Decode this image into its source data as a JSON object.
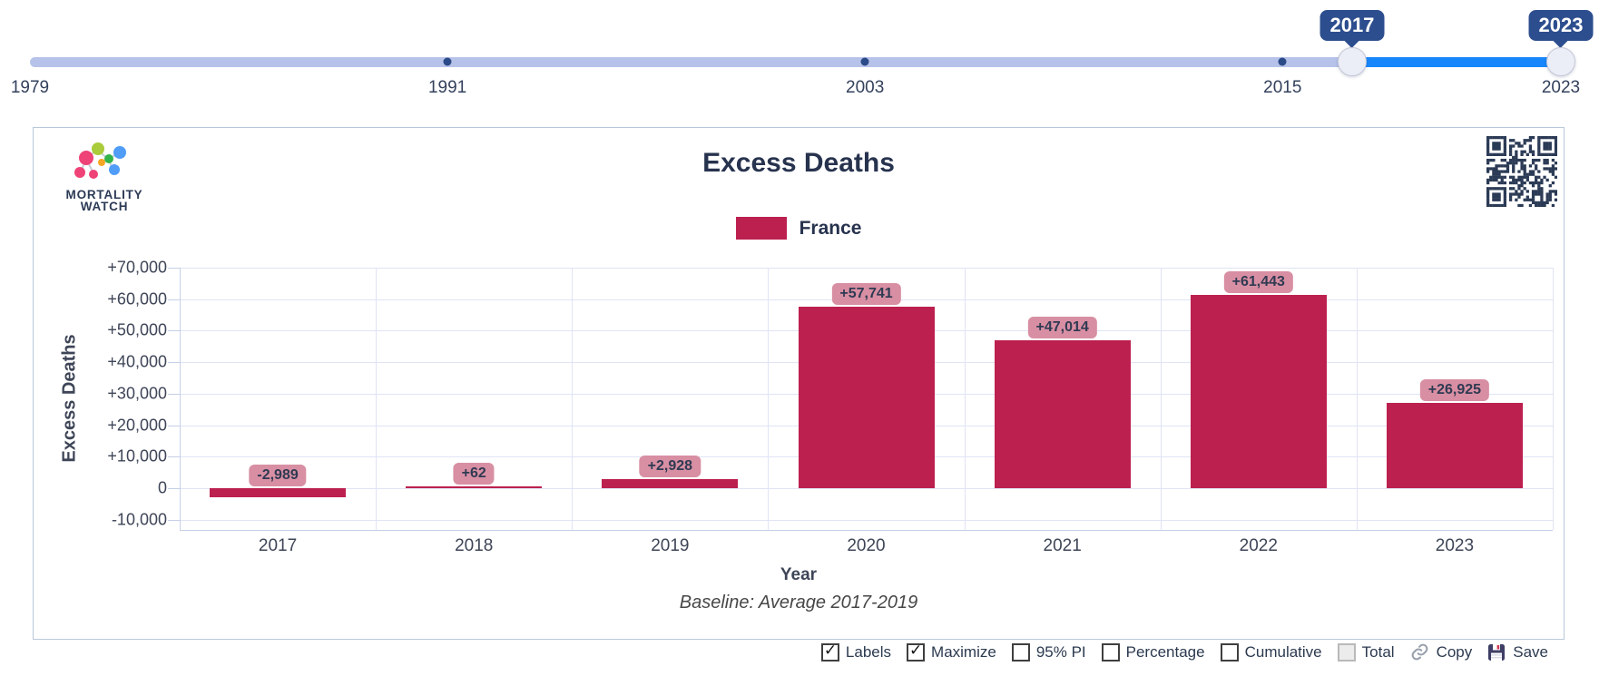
{
  "slider": {
    "min_year": 1979,
    "max_year": 2023,
    "selected_start": 2017,
    "selected_end": 2023,
    "start_label": "2017",
    "end_label": "2023",
    "tick_years": [
      1979,
      1991,
      2003,
      2015,
      2023
    ],
    "tick_labels": [
      "1979",
      "1991",
      "2003",
      "2015",
      "2023"
    ],
    "dot_years": [
      1991,
      2003,
      2015
    ]
  },
  "branding": {
    "logo_line1": "MORTALITY",
    "logo_line2": "WATCH"
  },
  "chart_data": {
    "type": "bar",
    "title": "Excess Deaths",
    "categories": [
      "2017",
      "2018",
      "2019",
      "2020",
      "2021",
      "2022",
      "2023"
    ],
    "series": [
      {
        "name": "France",
        "color": "#bc204f",
        "values": [
          -2989,
          62,
          2928,
          57741,
          47014,
          61443,
          26925
        ]
      }
    ],
    "value_labels": [
      "-2,989",
      "+62",
      "+2,928",
      "+57,741",
      "+47,014",
      "+61,443",
      "+26,925"
    ],
    "xlabel": "Year",
    "ylabel": "Excess Deaths",
    "footnote": "Baseline: Average 2017-2019",
    "ylim": [
      -10000,
      70000
    ],
    "ytick_step": 10000,
    "ytick_labels_top_to_bottom": [
      "+70,000",
      "+60,000",
      "+50,000",
      "+40,000",
      "+30,000",
      "+20,000",
      "+10,000",
      "0",
      "-10,000"
    ],
    "grid": true,
    "legend_position": "top-center"
  },
  "controls": {
    "checkboxes": [
      {
        "label": "Labels",
        "checked": true,
        "disabled": false
      },
      {
        "label": "Maximize",
        "checked": true,
        "disabled": false
      },
      {
        "label": "95% PI",
        "checked": false,
        "disabled": false
      },
      {
        "label": "Percentage",
        "checked": false,
        "disabled": false
      },
      {
        "label": "Cumulative",
        "checked": false,
        "disabled": false
      },
      {
        "label": "Total",
        "checked": false,
        "disabled": true
      }
    ],
    "copy_label": "Copy",
    "save_label": "Save"
  },
  "colors": {
    "bar": "#bc204f",
    "chip_bg": "#d88fa3",
    "navy": "#2b3a55",
    "track": "#b6c2e9",
    "track_active": "#1886fb",
    "tooltip_bg": "#2d4e8e",
    "grid": "#e0e4f4",
    "axis": "#c6d0e6"
  }
}
